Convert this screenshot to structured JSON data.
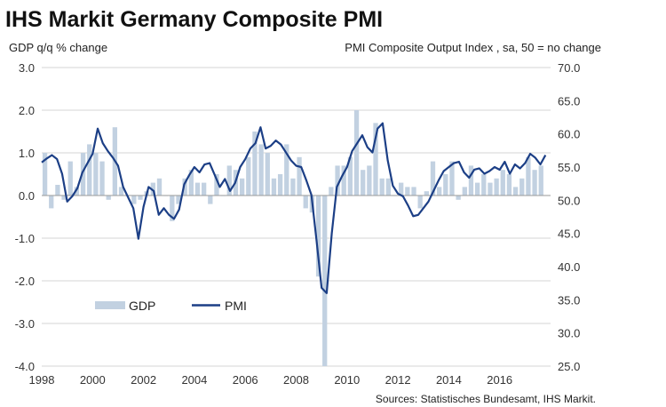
{
  "chart_data": {
    "type": "bar+line",
    "title": "IHS Markit Germany Composite PMI",
    "left_axis_label": "GDP q/q % change",
    "right_axis_label": "PMI Composite  Output Index  , sa, 50 = no change",
    "left_ylim": [
      -4.0,
      3.0
    ],
    "left_ticks": [
      "3.0",
      "2.0",
      "1.0",
      "0.0",
      "-1.0",
      "-2.0",
      "-3.0",
      "-4.0"
    ],
    "right_ylim": [
      25.0,
      70.0
    ],
    "right_ticks": [
      "70.0",
      "65.0",
      "60.0",
      "55.0",
      "50.0",
      "45.0",
      "40.0",
      "35.0",
      "30.0",
      "25.0"
    ],
    "xlim": [
      1998.0,
      2018.0
    ],
    "x_ticks": [
      "1998",
      "2000",
      "2002",
      "2004",
      "2006",
      "2008",
      "2010",
      "2012",
      "2014",
      "2016"
    ],
    "grid": "horizontal",
    "colors": {
      "gdp": "#c2d1e1",
      "pmi": "#1c3f86",
      "grid": "#d6d6d6",
      "zero_line": "#9a9a9a"
    },
    "legend": {
      "position": "bottom-left",
      "gdp_label": "GDP",
      "pmi_label": "PMI"
    },
    "source": "Sources: Statistisches Bundesamt, IHS Markit.",
    "gdp_series": {
      "name": "GDP",
      "x": [
        1998.0,
        1998.25,
        1998.5,
        1998.75,
        1999.0,
        1999.25,
        1999.5,
        1999.75,
        2000.0,
        2000.25,
        2000.5,
        2000.75,
        2001.0,
        2001.25,
        2001.5,
        2001.75,
        2002.0,
        2002.25,
        2002.5,
        2002.75,
        2003.0,
        2003.25,
        2003.5,
        2003.75,
        2004.0,
        2004.25,
        2004.5,
        2004.75,
        2005.0,
        2005.25,
        2005.5,
        2005.75,
        2006.0,
        2006.25,
        2006.5,
        2006.75,
        2007.0,
        2007.25,
        2007.5,
        2007.75,
        2008.0,
        2008.25,
        2008.5,
        2008.75,
        2009.0,
        2009.25,
        2009.5,
        2009.75,
        2010.0,
        2010.25,
        2010.5,
        2010.75,
        2011.0,
        2011.25,
        2011.5,
        2011.75,
        2012.0,
        2012.25,
        2012.5,
        2012.75,
        2013.0,
        2013.25,
        2013.5,
        2013.75,
        2014.0,
        2014.25,
        2014.5,
        2014.75,
        2015.0,
        2015.25,
        2015.5,
        2015.75,
        2016.0,
        2016.25,
        2016.5,
        2016.75,
        2017.0,
        2017.25,
        2017.5
      ],
      "values": [
        1.0,
        -0.3,
        0.25,
        -0.1,
        0.8,
        0.2,
        1.0,
        1.2,
        1.0,
        0.8,
        -0.1,
        1.6,
        0.2,
        0.0,
        -0.2,
        -0.1,
        0.1,
        0.3,
        0.4,
        0.0,
        -0.6,
        -0.2,
        0.4,
        0.6,
        0.3,
        0.3,
        -0.2,
        0.5,
        0.0,
        0.7,
        0.6,
        0.4,
        0.9,
        1.5,
        1.2,
        1.0,
        0.4,
        0.5,
        1.2,
        0.4,
        0.9,
        -0.3,
        -0.4,
        -1.9,
        -4.0,
        0.2,
        0.7,
        0.7,
        0.9,
        2.0,
        0.6,
        0.7,
        1.7,
        0.4,
        0.4,
        0.0,
        0.3,
        0.2,
        0.2,
        -0.3,
        0.1,
        0.8,
        0.2,
        0.5,
        0.8,
        -0.1,
        0.2,
        0.7,
        0.3,
        0.5,
        0.3,
        0.4,
        0.6,
        0.5,
        0.2,
        0.4,
        0.9,
        0.6,
        0.7
      ]
    },
    "pmi_series": {
      "name": "PMI",
      "x": [
        1998.0,
        1998.2,
        1998.4,
        1998.6,
        1998.8,
        1999.0,
        1999.2,
        1999.4,
        1999.6,
        1999.8,
        2000.0,
        2000.2,
        2000.4,
        2000.6,
        2000.8,
        2001.0,
        2001.2,
        2001.4,
        2001.6,
        2001.8,
        2002.0,
        2002.2,
        2002.4,
        2002.6,
        2002.8,
        2003.0,
        2003.2,
        2003.4,
        2003.6,
        2003.8,
        2004.0,
        2004.2,
        2004.4,
        2004.6,
        2004.8,
        2005.0,
        2005.2,
        2005.4,
        2005.6,
        2005.8,
        2006.0,
        2006.2,
        2006.4,
        2006.6,
        2006.8,
        2007.0,
        2007.2,
        2007.4,
        2007.6,
        2007.8,
        2008.0,
        2008.2,
        2008.4,
        2008.6,
        2008.8,
        2009.0,
        2009.2,
        2009.4,
        2009.6,
        2009.8,
        2010.0,
        2010.2,
        2010.4,
        2010.6,
        2010.8,
        2011.0,
        2011.2,
        2011.4,
        2011.6,
        2011.8,
        2012.0,
        2012.2,
        2012.4,
        2012.6,
        2012.8,
        2013.0,
        2013.2,
        2013.4,
        2013.6,
        2013.8,
        2014.0,
        2014.2,
        2014.4,
        2014.6,
        2014.8,
        2015.0,
        2015.2,
        2015.4,
        2015.6,
        2015.8,
        2016.0,
        2016.2,
        2016.4,
        2016.6,
        2016.8,
        2017.0,
        2017.2,
        2017.4,
        2017.6,
        2017.8
      ],
      "values": [
        55.7,
        56.3,
        56.8,
        56.2,
        54.0,
        49.8,
        50.6,
        51.8,
        54.2,
        55.6,
        57.0,
        60.8,
        58.6,
        57.4,
        56.4,
        55.2,
        52.0,
        50.4,
        48.8,
        44.2,
        49.0,
        52.0,
        51.4,
        47.8,
        48.8,
        47.8,
        47.2,
        48.6,
        52.4,
        53.8,
        55.0,
        54.2,
        55.4,
        55.6,
        53.8,
        52.0,
        53.2,
        51.4,
        52.6,
        55.0,
        56.2,
        57.8,
        58.6,
        61.0,
        57.8,
        58.2,
        59.0,
        58.4,
        57.2,
        56.0,
        55.2,
        55.0,
        53.0,
        50.8,
        44.0,
        36.8,
        36.0,
        45.0,
        52.0,
        53.6,
        55.0,
        57.4,
        58.6,
        59.8,
        58.0,
        57.2,
        60.8,
        61.6,
        56.0,
        52.2,
        51.0,
        50.6,
        49.2,
        47.6,
        47.8,
        48.8,
        49.8,
        51.4,
        53.0,
        54.4,
        55.0,
        55.6,
        55.8,
        54.2,
        53.4,
        54.6,
        54.8,
        54.0,
        54.4,
        55.0,
        54.6,
        55.8,
        54.0,
        55.4,
        54.8,
        55.6,
        57.0,
        56.4,
        55.4,
        56.8
      ]
    }
  }
}
